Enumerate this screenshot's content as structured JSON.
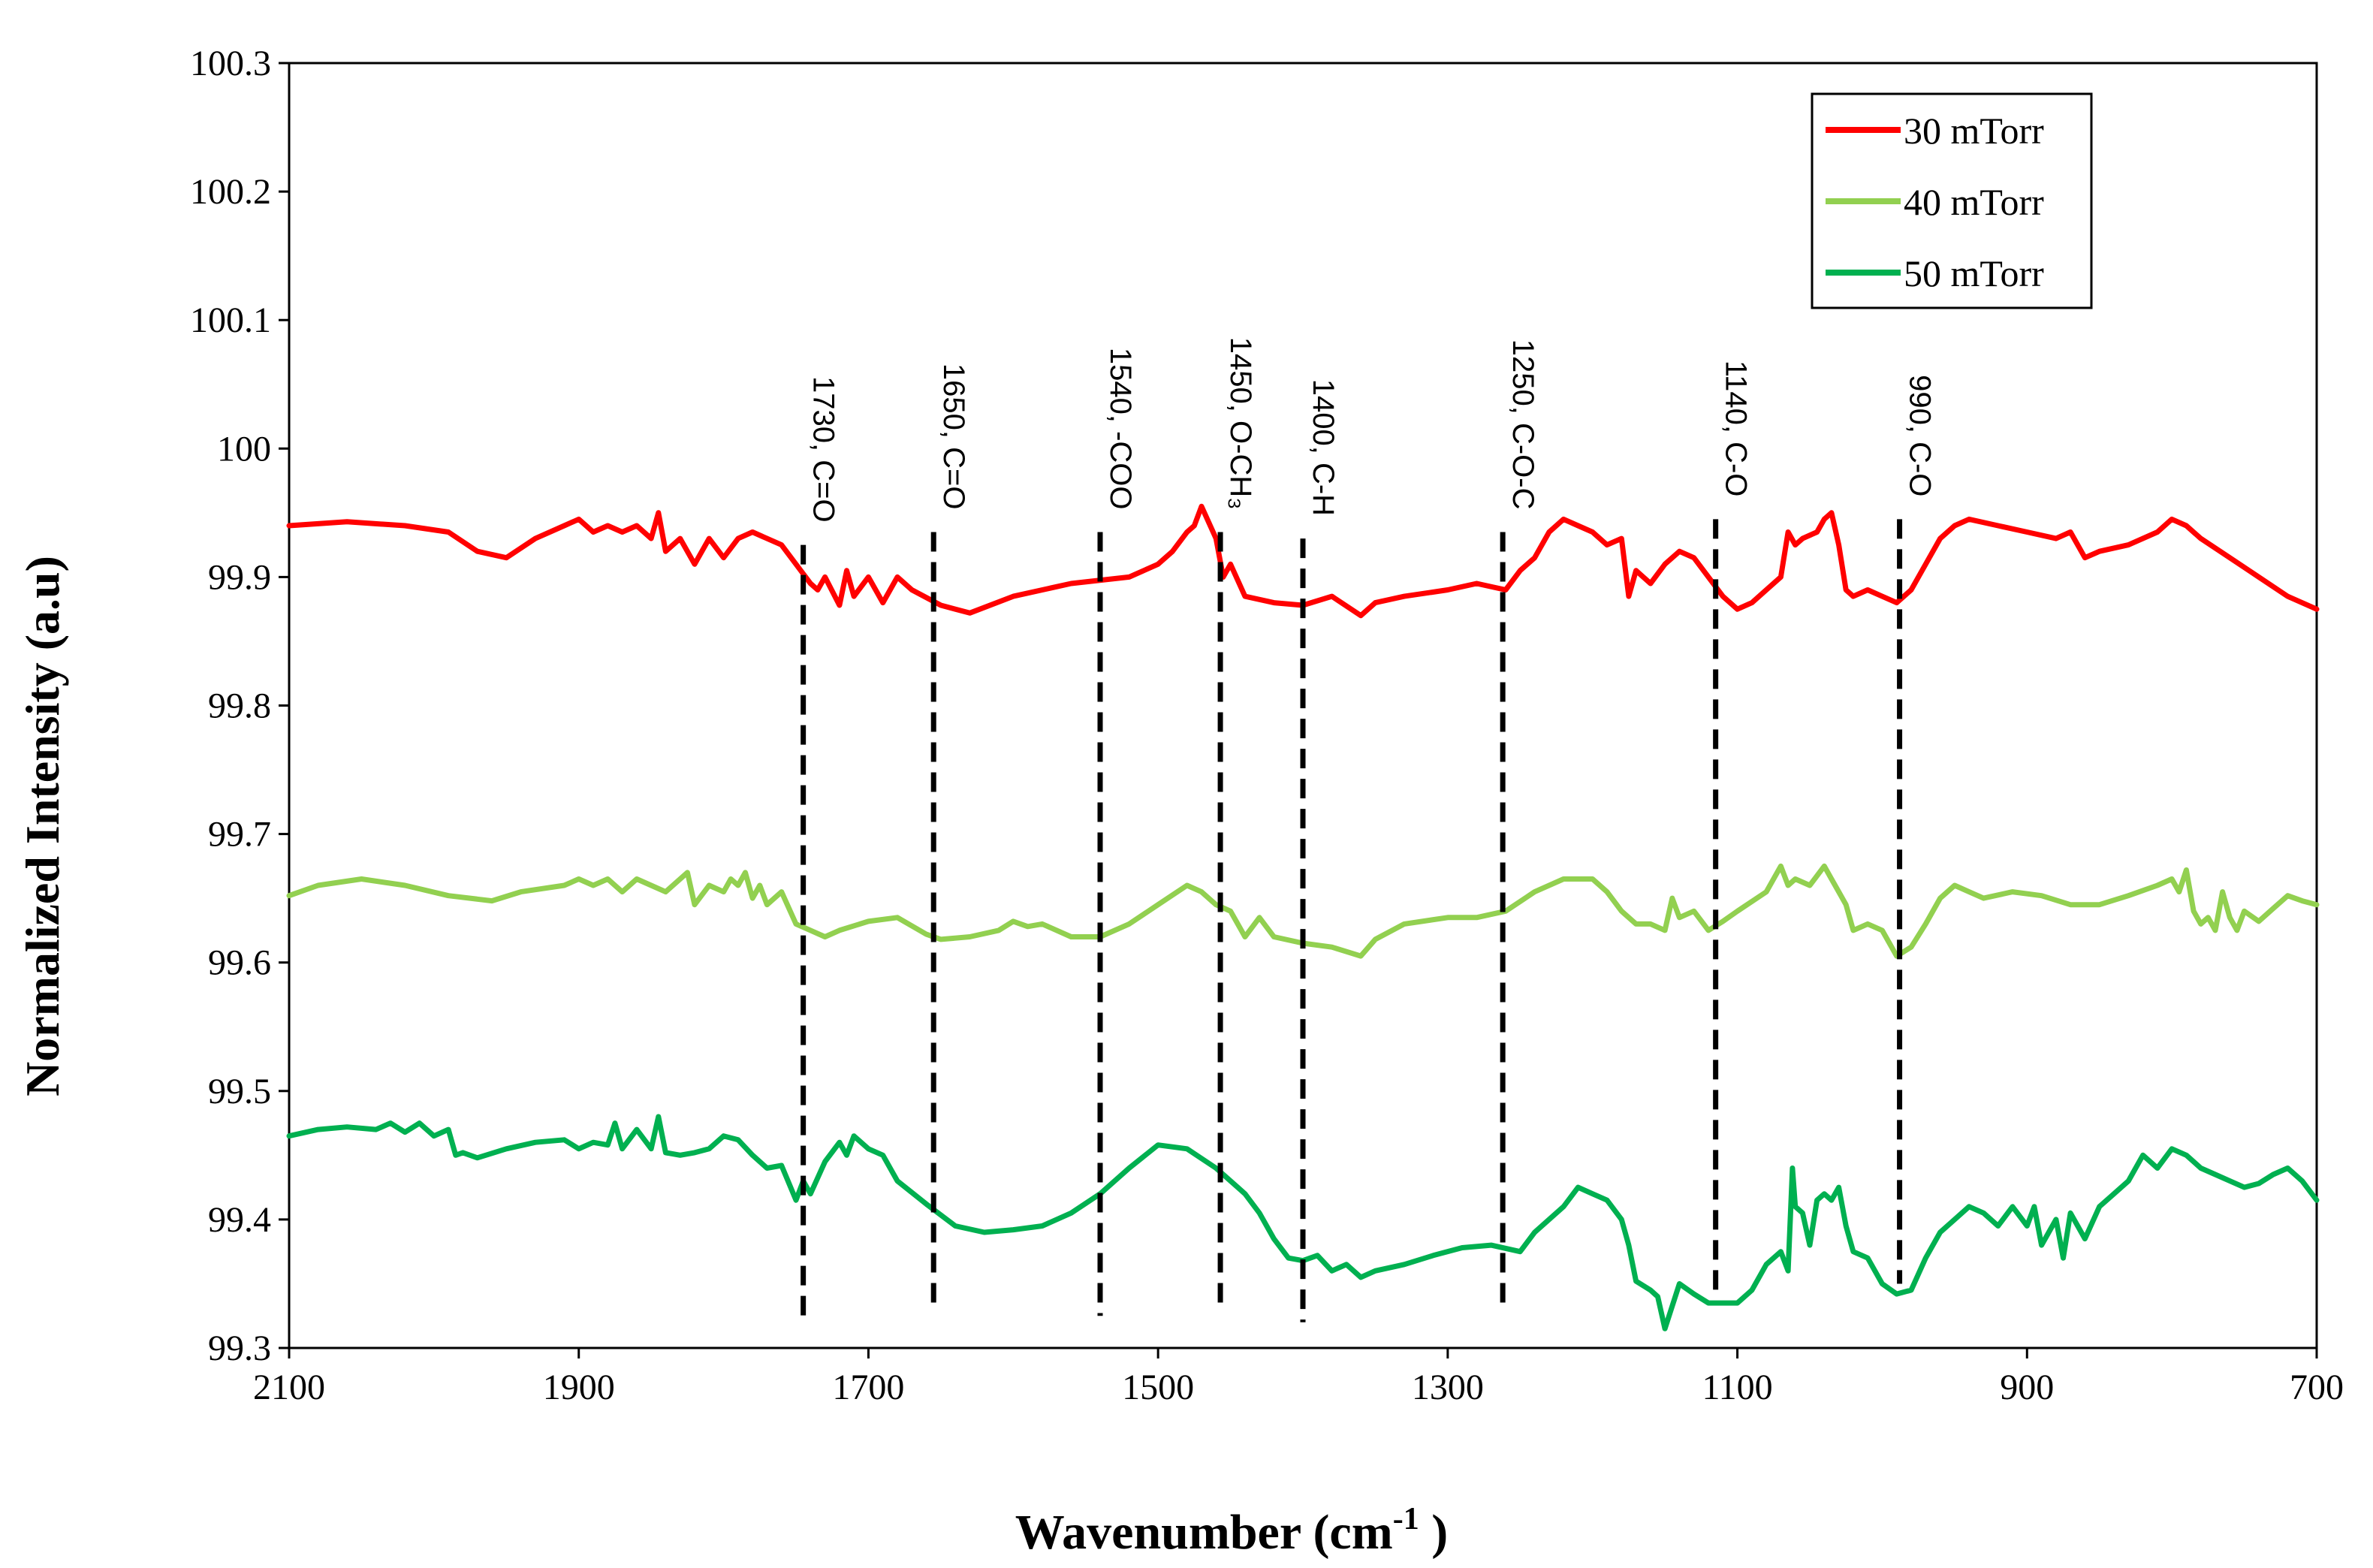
{
  "chart_data": {
    "type": "line",
    "title": "",
    "xlabel": "Wavenumber (cm",
    "xlabel_sup": "-1",
    "xlabel_tail": " )",
    "ylabel": "Normalized Intensity (a.u)",
    "xlim": [
      2100,
      700
    ],
    "ylim": [
      99.3,
      100.3
    ],
    "x_ticks": [
      "2100",
      "1900",
      "1700",
      "1500",
      "1300",
      "1100",
      "900",
      "700"
    ],
    "y_ticks": [
      "99.3",
      "99.4",
      "99.5",
      "99.6",
      "99.7",
      "99.8",
      "99.9",
      "100",
      "100.1",
      "100.2",
      "100.3"
    ],
    "legend_position": "top-right",
    "series": [
      {
        "name": "30 mTorr",
        "color": "#ff0000",
        "x": [
          2100,
          2060,
          2020,
          1990,
          1970,
          1950,
          1930,
          1910,
          1900,
          1890,
          1880,
          1870,
          1860,
          1850,
          1845,
          1840,
          1830,
          1820,
          1810,
          1800,
          1790,
          1780,
          1770,
          1760,
          1750,
          1740,
          1735,
          1730,
          1720,
          1715,
          1710,
          1700,
          1690,
          1680,
          1670,
          1650,
          1630,
          1600,
          1560,
          1520,
          1500,
          1490,
          1480,
          1475,
          1470,
          1460,
          1455,
          1450,
          1440,
          1420,
          1400,
          1380,
          1360,
          1350,
          1330,
          1300,
          1280,
          1260,
          1250,
          1240,
          1230,
          1220,
          1210,
          1200,
          1190,
          1180,
          1175,
          1170,
          1160,
          1150,
          1140,
          1130,
          1120,
          1110,
          1100,
          1090,
          1080,
          1070,
          1065,
          1060,
          1055,
          1045,
          1040,
          1035,
          1030,
          1025,
          1020,
          1010,
          1000,
          990,
          980,
          970,
          960,
          950,
          940,
          920,
          900,
          880,
          870,
          860,
          850,
          830,
          810,
          800,
          790,
          780,
          760,
          740,
          720,
          700
        ],
        "y": [
          99.94,
          99.943,
          99.94,
          99.935,
          99.92,
          99.915,
          99.93,
          99.94,
          99.945,
          99.935,
          99.94,
          99.935,
          99.94,
          99.93,
          99.95,
          99.92,
          99.93,
          99.91,
          99.93,
          99.915,
          99.93,
          99.935,
          99.93,
          99.925,
          99.91,
          99.895,
          99.89,
          99.9,
          99.878,
          99.905,
          99.885,
          99.9,
          99.88,
          99.9,
          99.89,
          99.878,
          99.872,
          99.885,
          99.895,
          99.9,
          99.91,
          99.92,
          99.935,
          99.94,
          99.955,
          99.93,
          99.9,
          99.91,
          99.885,
          99.88,
          99.878,
          99.885,
          99.87,
          99.88,
          99.885,
          99.89,
          99.895,
          99.89,
          99.905,
          99.915,
          99.935,
          99.945,
          99.94,
          99.935,
          99.925,
          99.93,
          99.885,
          99.905,
          99.895,
          99.91,
          99.92,
          99.915,
          99.9,
          99.885,
          99.875,
          99.88,
          99.89,
          99.9,
          99.935,
          99.925,
          99.93,
          99.935,
          99.945,
          99.95,
          99.925,
          99.89,
          99.885,
          99.89,
          99.885,
          99.88,
          99.89,
          99.91,
          99.93,
          99.94,
          99.945,
          99.94,
          99.935,
          99.93,
          99.935,
          99.915,
          99.92,
          99.925,
          99.935,
          99.945,
          99.94,
          99.93,
          99.915,
          99.9,
          99.885,
          99.875
        ]
      },
      {
        "name": "40 mTorr",
        "color": "#92d050",
        "x": [
          2100,
          2080,
          2050,
          2020,
          1990,
          1960,
          1940,
          1910,
          1900,
          1890,
          1880,
          1870,
          1860,
          1850,
          1840,
          1830,
          1825,
          1820,
          1810,
          1800,
          1795,
          1790,
          1785,
          1780,
          1775,
          1770,
          1760,
          1750,
          1740,
          1730,
          1720,
          1700,
          1680,
          1660,
          1650,
          1630,
          1610,
          1600,
          1590,
          1580,
          1560,
          1540,
          1520,
          1500,
          1480,
          1470,
          1460,
          1450,
          1440,
          1430,
          1420,
          1400,
          1380,
          1360,
          1350,
          1330,
          1300,
          1280,
          1260,
          1240,
          1220,
          1200,
          1190,
          1180,
          1170,
          1160,
          1150,
          1145,
          1140,
          1130,
          1120,
          1110,
          1100,
          1080,
          1070,
          1065,
          1060,
          1050,
          1040,
          1035,
          1030,
          1025,
          1020,
          1010,
          1000,
          990,
          980,
          970,
          960,
          950,
          940,
          930,
          910,
          890,
          870,
          850,
          830,
          810,
          800,
          795,
          790,
          785,
          780,
          775,
          770,
          765,
          760,
          755,
          750,
          740,
          730,
          720,
          710,
          700
        ],
        "y": [
          99.652,
          99.66,
          99.665,
          99.66,
          99.652,
          99.648,
          99.655,
          99.66,
          99.665,
          99.66,
          99.665,
          99.655,
          99.665,
          99.66,
          99.655,
          99.665,
          99.67,
          99.645,
          99.66,
          99.655,
          99.665,
          99.66,
          99.67,
          99.65,
          99.66,
          99.645,
          99.655,
          99.63,
          99.625,
          99.62,
          99.625,
          99.632,
          99.635,
          99.622,
          99.618,
          99.62,
          99.625,
          99.632,
          99.628,
          99.63,
          99.62,
          99.62,
          99.63,
          99.645,
          99.66,
          99.655,
          99.645,
          99.64,
          99.62,
          99.635,
          99.62,
          99.615,
          99.612,
          99.605,
          99.618,
          99.63,
          99.635,
          99.635,
          99.64,
          99.655,
          99.665,
          99.665,
          99.655,
          99.64,
          99.63,
          99.63,
          99.625,
          99.65,
          99.635,
          99.64,
          99.625,
          99.632,
          99.64,
          99.655,
          99.675,
          99.66,
          99.665,
          99.66,
          99.675,
          99.665,
          99.655,
          99.645,
          99.625,
          99.63,
          99.625,
          99.605,
          99.612,
          99.63,
          99.65,
          99.66,
          99.655,
          99.65,
          99.655,
          99.652,
          99.645,
          99.645,
          99.652,
          99.66,
          99.665,
          99.655,
          99.672,
          99.64,
          99.63,
          99.635,
          99.625,
          99.655,
          99.635,
          99.625,
          99.64,
          99.632,
          99.642,
          99.652,
          99.648,
          99.645
        ]
      },
      {
        "name": "50 mTorr",
        "color": "#00b050",
        "x": [
          2100,
          2080,
          2060,
          2040,
          2030,
          2020,
          2010,
          2000,
          1990,
          1985,
          1980,
          1970,
          1950,
          1930,
          1910,
          1900,
          1890,
          1880,
          1875,
          1870,
          1860,
          1850,
          1845,
          1840,
          1830,
          1820,
          1810,
          1800,
          1790,
          1780,
          1770,
          1760,
          1750,
          1745,
          1740,
          1730,
          1720,
          1715,
          1710,
          1700,
          1690,
          1680,
          1660,
          1640,
          1620,
          1600,
          1580,
          1560,
          1540,
          1520,
          1500,
          1480,
          1460,
          1440,
          1430,
          1420,
          1410,
          1400,
          1390,
          1380,
          1370,
          1360,
          1350,
          1330,
          1310,
          1290,
          1270,
          1250,
          1240,
          1220,
          1210,
          1200,
          1190,
          1180,
          1175,
          1170,
          1160,
          1155,
          1150,
          1140,
          1130,
          1120,
          1110,
          1100,
          1090,
          1080,
          1070,
          1065,
          1062,
          1060,
          1055,
          1050,
          1045,
          1040,
          1035,
          1030,
          1025,
          1020,
          1010,
          1000,
          990,
          980,
          970,
          960,
          950,
          940,
          930,
          920,
          910,
          900,
          895,
          890,
          880,
          875,
          870,
          860,
          850,
          840,
          830,
          820,
          810,
          800,
          790,
          780,
          770,
          760,
          750,
          740,
          730,
          720,
          710,
          700
        ],
        "y": [
          99.465,
          99.47,
          99.472,
          99.47,
          99.475,
          99.468,
          99.475,
          99.465,
          99.47,
          99.45,
          99.452,
          99.448,
          99.455,
          99.46,
          99.462,
          99.455,
          99.46,
          99.458,
          99.475,
          99.455,
          99.47,
          99.455,
          99.48,
          99.452,
          99.45,
          99.452,
          99.455,
          99.465,
          99.462,
          99.45,
          99.44,
          99.442,
          99.415,
          99.43,
          99.42,
          99.445,
          99.46,
          99.45,
          99.465,
          99.455,
          99.45,
          99.43,
          99.412,
          99.395,
          99.39,
          99.392,
          99.395,
          99.405,
          99.42,
          99.44,
          99.458,
          99.455,
          99.44,
          99.42,
          99.405,
          99.385,
          99.37,
          99.368,
          99.372,
          99.36,
          99.365,
          99.355,
          99.36,
          99.365,
          99.372,
          99.378,
          99.38,
          99.375,
          99.39,
          99.41,
          99.425,
          99.42,
          99.415,
          99.4,
          99.38,
          99.352,
          99.345,
          99.34,
          99.315,
          99.35,
          99.342,
          99.335,
          99.335,
          99.335,
          99.345,
          99.365,
          99.375,
          99.36,
          99.44,
          99.41,
          99.405,
          99.38,
          99.415,
          99.42,
          99.415,
          99.425,
          99.395,
          99.375,
          99.37,
          99.35,
          99.342,
          99.345,
          99.37,
          99.39,
          99.4,
          99.41,
          99.405,
          99.395,
          99.41,
          99.395,
          99.41,
          99.38,
          99.4,
          99.37,
          99.405,
          99.385,
          99.41,
          99.42,
          99.43,
          99.45,
          99.44,
          99.455,
          99.45,
          99.44,
          99.435,
          99.43,
          99.425,
          99.428,
          99.435,
          99.44,
          99.43,
          99.415
        ]
      }
    ],
    "annotations": [
      {
        "x": 1745,
        "y_top": 99.925,
        "y_bottom": 99.318,
        "text": "1730, C=O"
      },
      {
        "x": 1655,
        "y_top": 99.935,
        "y_bottom": 99.33,
        "text": "1650, C=O"
      },
      {
        "x": 1540,
        "y_top": 99.935,
        "y_bottom": 99.325,
        "text": "1540, -COO"
      },
      {
        "x": 1457,
        "y_top": 99.935,
        "y_bottom": 99.328,
        "text": "1450, O-CH₃"
      },
      {
        "x": 1400,
        "y_top": 99.93,
        "y_bottom": 99.32,
        "text": "1400, C-H"
      },
      {
        "x": 1262,
        "y_top": 99.935,
        "y_bottom": 99.33,
        "text": "1250, C-O-C"
      },
      {
        "x": 1115,
        "y_top": 99.945,
        "y_bottom": 99.34,
        "text": "1140, C-O"
      },
      {
        "x": 988,
        "y_top": 99.945,
        "y_bottom": 99.35,
        "text": "990, C-O"
      }
    ]
  }
}
